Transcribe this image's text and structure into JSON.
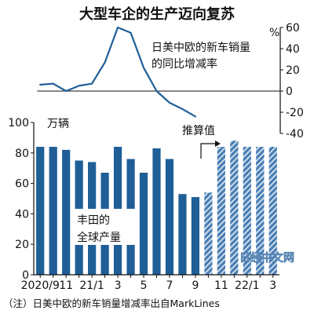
{
  "title": "大型车企的生产迈向复苏",
  "source_note": "（注）日美中欧的新车销量增减率出自MarkLines",
  "watermark": "日经中文网",
  "chart_data": [
    {
      "type": "bar",
      "series_label": "丰田的全球产量",
      "series_label_lines": [
        "丰田的",
        "全球产量"
      ],
      "unit": "万辆",
      "categories": [
        "2020/9",
        "10",
        "11",
        "12",
        "21/1",
        "2",
        "3",
        "4",
        "5",
        "6",
        "7",
        "8",
        "9",
        "10",
        "11",
        "12",
        "22/1",
        "2",
        "3"
      ],
      "x_tick_labels": [
        "2020/9",
        "11",
        "21/1",
        "3",
        "5",
        "7",
        "9",
        "11",
        "22/1",
        "3"
      ],
      "values": [
        84,
        84,
        82,
        75,
        74,
        67,
        84,
        76,
        67,
        83,
        76,
        53,
        51,
        54,
        84,
        88,
        84,
        84,
        84
      ],
      "estimated": [
        false,
        false,
        false,
        false,
        false,
        false,
        false,
        false,
        false,
        false,
        false,
        false,
        false,
        true,
        true,
        true,
        true,
        true,
        true
      ],
      "estimate_label": "推算值",
      "ylim": [
        0,
        100
      ],
      "yticks": [
        0,
        20,
        40,
        60,
        80,
        100
      ],
      "colors": {
        "actual": "#1f5e97",
        "estimate": "#4a7fb5",
        "estimate_stripe": "#ffffff"
      }
    },
    {
      "type": "line",
      "series_label": "日美中欧的新车销量的同比增减率",
      "series_label_lines": [
        "日美中欧的新车销量",
        "的同比增减率"
      ],
      "unit": "%",
      "categories": [
        "2020/9",
        "10",
        "11",
        "12",
        "21/1",
        "2",
        "3",
        "4",
        "5",
        "6",
        "7",
        "8",
        "9"
      ],
      "values": [
        6,
        7,
        0,
        5,
        7,
        27,
        60,
        55,
        22,
        0,
        -11,
        -17,
        -24
      ],
      "ylim": [
        -40,
        60
      ],
      "yticks": [
        60,
        40,
        20,
        0,
        -20,
        -40
      ],
      "color": "#1f5e97"
    }
  ]
}
